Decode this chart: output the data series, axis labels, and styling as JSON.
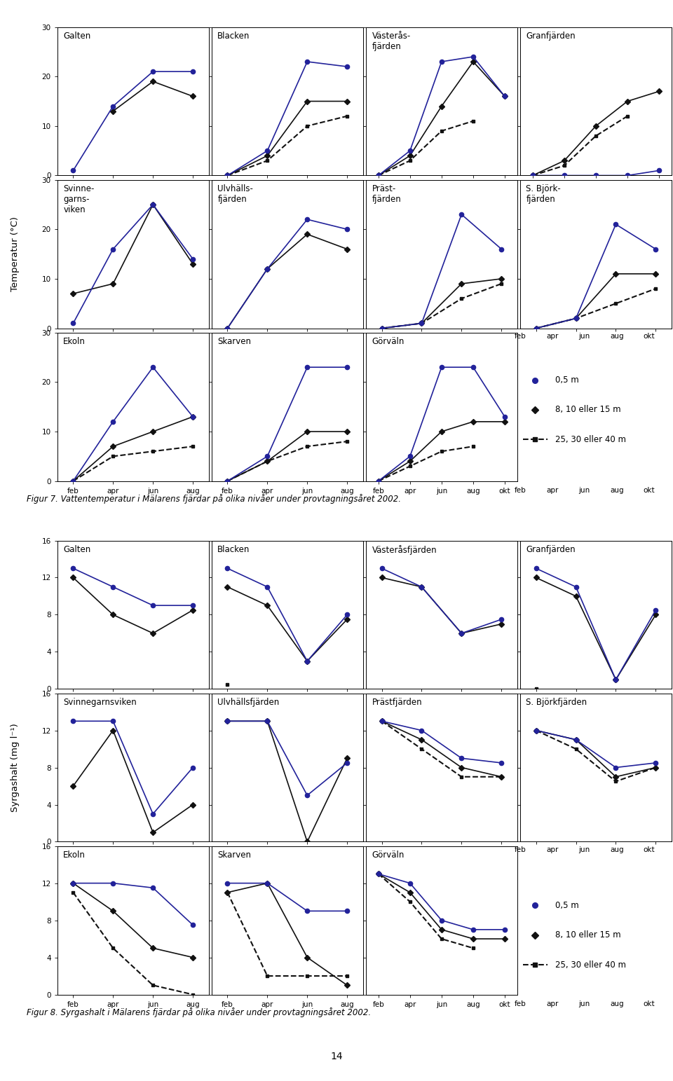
{
  "fig1": {
    "title": "Figur 7. Vattentemperatur i Mälarens fjärdar på olika nivåer under provtagningsåret 2002.",
    "ylabel": "Temperatur (°C)",
    "subplots": [
      {
        "title": "Galten",
        "row": 0,
        "col": 0,
        "xlabels": [
          "feb",
          "apr",
          "jun",
          "aug"
        ],
        "s1": [
          1,
          14,
          21,
          21
        ],
        "s2": [
          null,
          13,
          19,
          16
        ],
        "s3": [
          null,
          null,
          null,
          null
        ]
      },
      {
        "title": "Blacken",
        "row": 0,
        "col": 1,
        "xlabels": [
          "feb",
          "apr",
          "jun",
          "aug"
        ],
        "s1": [
          0,
          5,
          23,
          22
        ],
        "s2": [
          0,
          4,
          15,
          15
        ],
        "s3": [
          0,
          3,
          10,
          12
        ]
      },
      {
        "title": "Västerås-\nfjärden",
        "row": 0,
        "col": 2,
        "xlabels": [
          "feb",
          "apr",
          "jun",
          "aug",
          "okt"
        ],
        "s1": [
          0,
          5,
          23,
          24,
          16
        ],
        "s2": [
          0,
          4,
          14,
          23,
          16
        ],
        "s3": [
          0,
          3,
          9,
          11,
          null
        ]
      },
      {
        "title": "Granfjärden",
        "row": 0,
        "col": 3,
        "xlabels": [
          "feb",
          "apr",
          "jun",
          "aug",
          "okt"
        ],
        "s1": [
          0,
          0,
          0,
          0,
          1
        ],
        "s2": [
          0,
          3,
          10,
          15,
          17
        ],
        "s3": [
          0,
          2,
          8,
          12,
          null
        ]
      },
      {
        "title": "Svinne-\ngarns-\nviken",
        "row": 1,
        "col": 0,
        "xlabels": [
          "feb",
          "apr",
          "jun",
          "aug"
        ],
        "s1": [
          1,
          16,
          25,
          14
        ],
        "s2": [
          7,
          9,
          25,
          13
        ],
        "s3": [
          null,
          null,
          null,
          null
        ]
      },
      {
        "title": "Ulvhälls-\nfjärden",
        "row": 1,
        "col": 1,
        "xlabels": [
          "feb",
          "apr",
          "jun",
          "aug"
        ],
        "s1": [
          0,
          12,
          22,
          20
        ],
        "s2": [
          0,
          12,
          19,
          16
        ],
        "s3": [
          null,
          null,
          null,
          null
        ]
      },
      {
        "title": "Präst-\nfjärden",
        "row": 1,
        "col": 2,
        "xlabels": [
          "feb",
          "apr",
          "jun",
          "aug"
        ],
        "s1": [
          0,
          1,
          23,
          16
        ],
        "s2": [
          0,
          1,
          9,
          10
        ],
        "s3": [
          0,
          1,
          6,
          9
        ]
      },
      {
        "title": "S. Björk-\nfjärden",
        "row": 1,
        "col": 3,
        "xlabels": [
          "feb",
          "apr",
          "jun",
          "aug"
        ],
        "s1": [
          0,
          2,
          21,
          16
        ],
        "s2": [
          0,
          2,
          11,
          11
        ],
        "s3": [
          0,
          2,
          5,
          8
        ]
      },
      {
        "title": "Ekoln",
        "row": 2,
        "col": 0,
        "xlabels": [
          "feb",
          "apr",
          "jun",
          "aug"
        ],
        "s1": [
          0,
          12,
          23,
          13
        ],
        "s2": [
          0,
          7,
          10,
          13
        ],
        "s3": [
          0,
          5,
          6,
          7
        ]
      },
      {
        "title": "Skarven",
        "row": 2,
        "col": 1,
        "xlabels": [
          "feb",
          "apr",
          "jun",
          "aug"
        ],
        "s1": [
          0,
          5,
          23,
          23
        ],
        "s2": [
          0,
          4,
          10,
          10
        ],
        "s3": [
          0,
          4,
          7,
          8
        ]
      },
      {
        "title": "Görväln",
        "row": 2,
        "col": 2,
        "xlabels": [
          "feb",
          "apr",
          "jun",
          "aug",
          "okt"
        ],
        "s1": [
          0,
          5,
          23,
          23,
          13
        ],
        "s2": [
          0,
          4,
          10,
          12,
          12
        ],
        "s3": [
          0,
          3,
          6,
          7,
          null
        ]
      }
    ],
    "ylim": [
      0,
      30
    ],
    "yticks": [
      0,
      10,
      20,
      30
    ]
  },
  "fig2": {
    "title": "Figur 8. Syrgashalt i Mälarens fjärdar på olika nivåer under provtagningsåret 2002.",
    "ylabel": "Syrgashalt (mg l⁻¹)",
    "subplots": [
      {
        "title": "Galten",
        "row": 0,
        "col": 0,
        "xlabels": [
          "feb",
          "apr",
          "jun",
          "aug"
        ],
        "s1": [
          13,
          11,
          9,
          9
        ],
        "s2": [
          12,
          8,
          6,
          8.5
        ],
        "s3": [
          null,
          null,
          null,
          null
        ]
      },
      {
        "title": "Blacken",
        "row": 0,
        "col": 1,
        "xlabels": [
          "feb",
          "apr",
          "jun",
          "aug"
        ],
        "s1": [
          13,
          11,
          3,
          8
        ],
        "s2": [
          11,
          9,
          3,
          7.5
        ],
        "s3": [
          0.5,
          null,
          null,
          null
        ]
      },
      {
        "title": "Västeråsfjärden",
        "row": 0,
        "col": 2,
        "xlabels": [
          "feb",
          "apr",
          "jun",
          "aug"
        ],
        "s1": [
          13,
          11,
          6,
          7.5
        ],
        "s2": [
          12,
          11,
          6,
          7
        ],
        "s3": [
          null,
          null,
          null,
          null
        ]
      },
      {
        "title": "Granfjärden",
        "row": 0,
        "col": 3,
        "xlabels": [
          "feb",
          "apr",
          "jun",
          "aug"
        ],
        "s1": [
          13,
          11,
          1,
          8.5
        ],
        "s2": [
          12,
          10,
          1,
          8
        ],
        "s3": [
          0,
          null,
          null,
          null
        ]
      },
      {
        "title": "Svinnegarnsviken",
        "row": 1,
        "col": 0,
        "xlabels": [
          "feb",
          "apr",
          "jun",
          "aug"
        ],
        "s1": [
          13,
          13,
          3,
          8
        ],
        "s2": [
          6,
          12,
          1,
          4
        ],
        "s3": [
          null,
          null,
          null,
          null
        ]
      },
      {
        "title": "Ulvhällsfjärden",
        "row": 1,
        "col": 1,
        "xlabels": [
          "feb",
          "apr",
          "jun",
          "aug"
        ],
        "s1": [
          13,
          13,
          5,
          8.5
        ],
        "s2": [
          13,
          13,
          0,
          9
        ],
        "s3": [
          null,
          null,
          null,
          null
        ]
      },
      {
        "title": "Prästfjärden",
        "row": 1,
        "col": 2,
        "xlabels": [
          "feb",
          "apr",
          "jun",
          "aug"
        ],
        "s1": [
          13,
          12,
          9,
          8.5
        ],
        "s2": [
          13,
          11,
          8,
          7
        ],
        "s3": [
          13,
          10,
          7,
          7
        ]
      },
      {
        "title": "S. Björkfjärden",
        "row": 1,
        "col": 3,
        "xlabels": [
          "feb",
          "apr",
          "jun",
          "aug"
        ],
        "s1": [
          12,
          11,
          8,
          8.5
        ],
        "s2": [
          12,
          11,
          7,
          8
        ],
        "s3": [
          12,
          10,
          6.5,
          8
        ]
      },
      {
        "title": "Ekoln",
        "row": 2,
        "col": 0,
        "xlabels": [
          "feb",
          "apr",
          "jun",
          "aug"
        ],
        "s1": [
          12,
          12,
          11.5,
          7.5
        ],
        "s2": [
          12,
          9,
          5,
          4
        ],
        "s3": [
          11,
          5,
          1,
          0
        ]
      },
      {
        "title": "Skarven",
        "row": 2,
        "col": 1,
        "xlabels": [
          "feb",
          "apr",
          "jun",
          "aug"
        ],
        "s1": [
          12,
          12,
          9,
          9
        ],
        "s2": [
          11,
          12,
          4,
          1
        ],
        "s3": [
          11,
          2,
          2,
          2
        ]
      },
      {
        "title": "Görväln",
        "row": 2,
        "col": 2,
        "xlabels": [
          "feb",
          "apr",
          "jun",
          "aug",
          "okt"
        ],
        "s1": [
          13,
          12,
          8,
          7,
          7
        ],
        "s2": [
          13,
          11,
          7,
          6,
          6
        ],
        "s3": [
          13,
          10,
          6,
          5,
          null
        ]
      }
    ],
    "ylim": [
      0,
      16
    ],
    "yticks": [
      0,
      4,
      8,
      12,
      16
    ]
  },
  "color_s1": "#22229a",
  "color_s2": "#111111",
  "color_s3": "#111111",
  "marker_s1": "o",
  "marker_s2": "D",
  "marker_s3": "s",
  "ms1": 4.5,
  "ms2": 4,
  "ms3": 3.5,
  "lw1": 1.2,
  "lw2": 1.2,
  "lw3": 1.5,
  "ls3": "--",
  "legend_labels": [
    "0,5 m",
    "8, 10 eller 15 m",
    "25, 30 eller 40 m"
  ],
  "fig1_ylabel": "Temperatur (°C)",
  "fig2_ylabel": "Syrgashalt (mg l⁻¹)",
  "fig1_caption": "Figur 7. Vattentemperatur i Mälarens fjärdar på olika nivåer under provtagningsåret 2002.",
  "fig2_caption": "Figur 8. Syrgashalt i Mälarens fjärdar på olika nivåer under provtagningsåret 2002.",
  "page_number": "14"
}
